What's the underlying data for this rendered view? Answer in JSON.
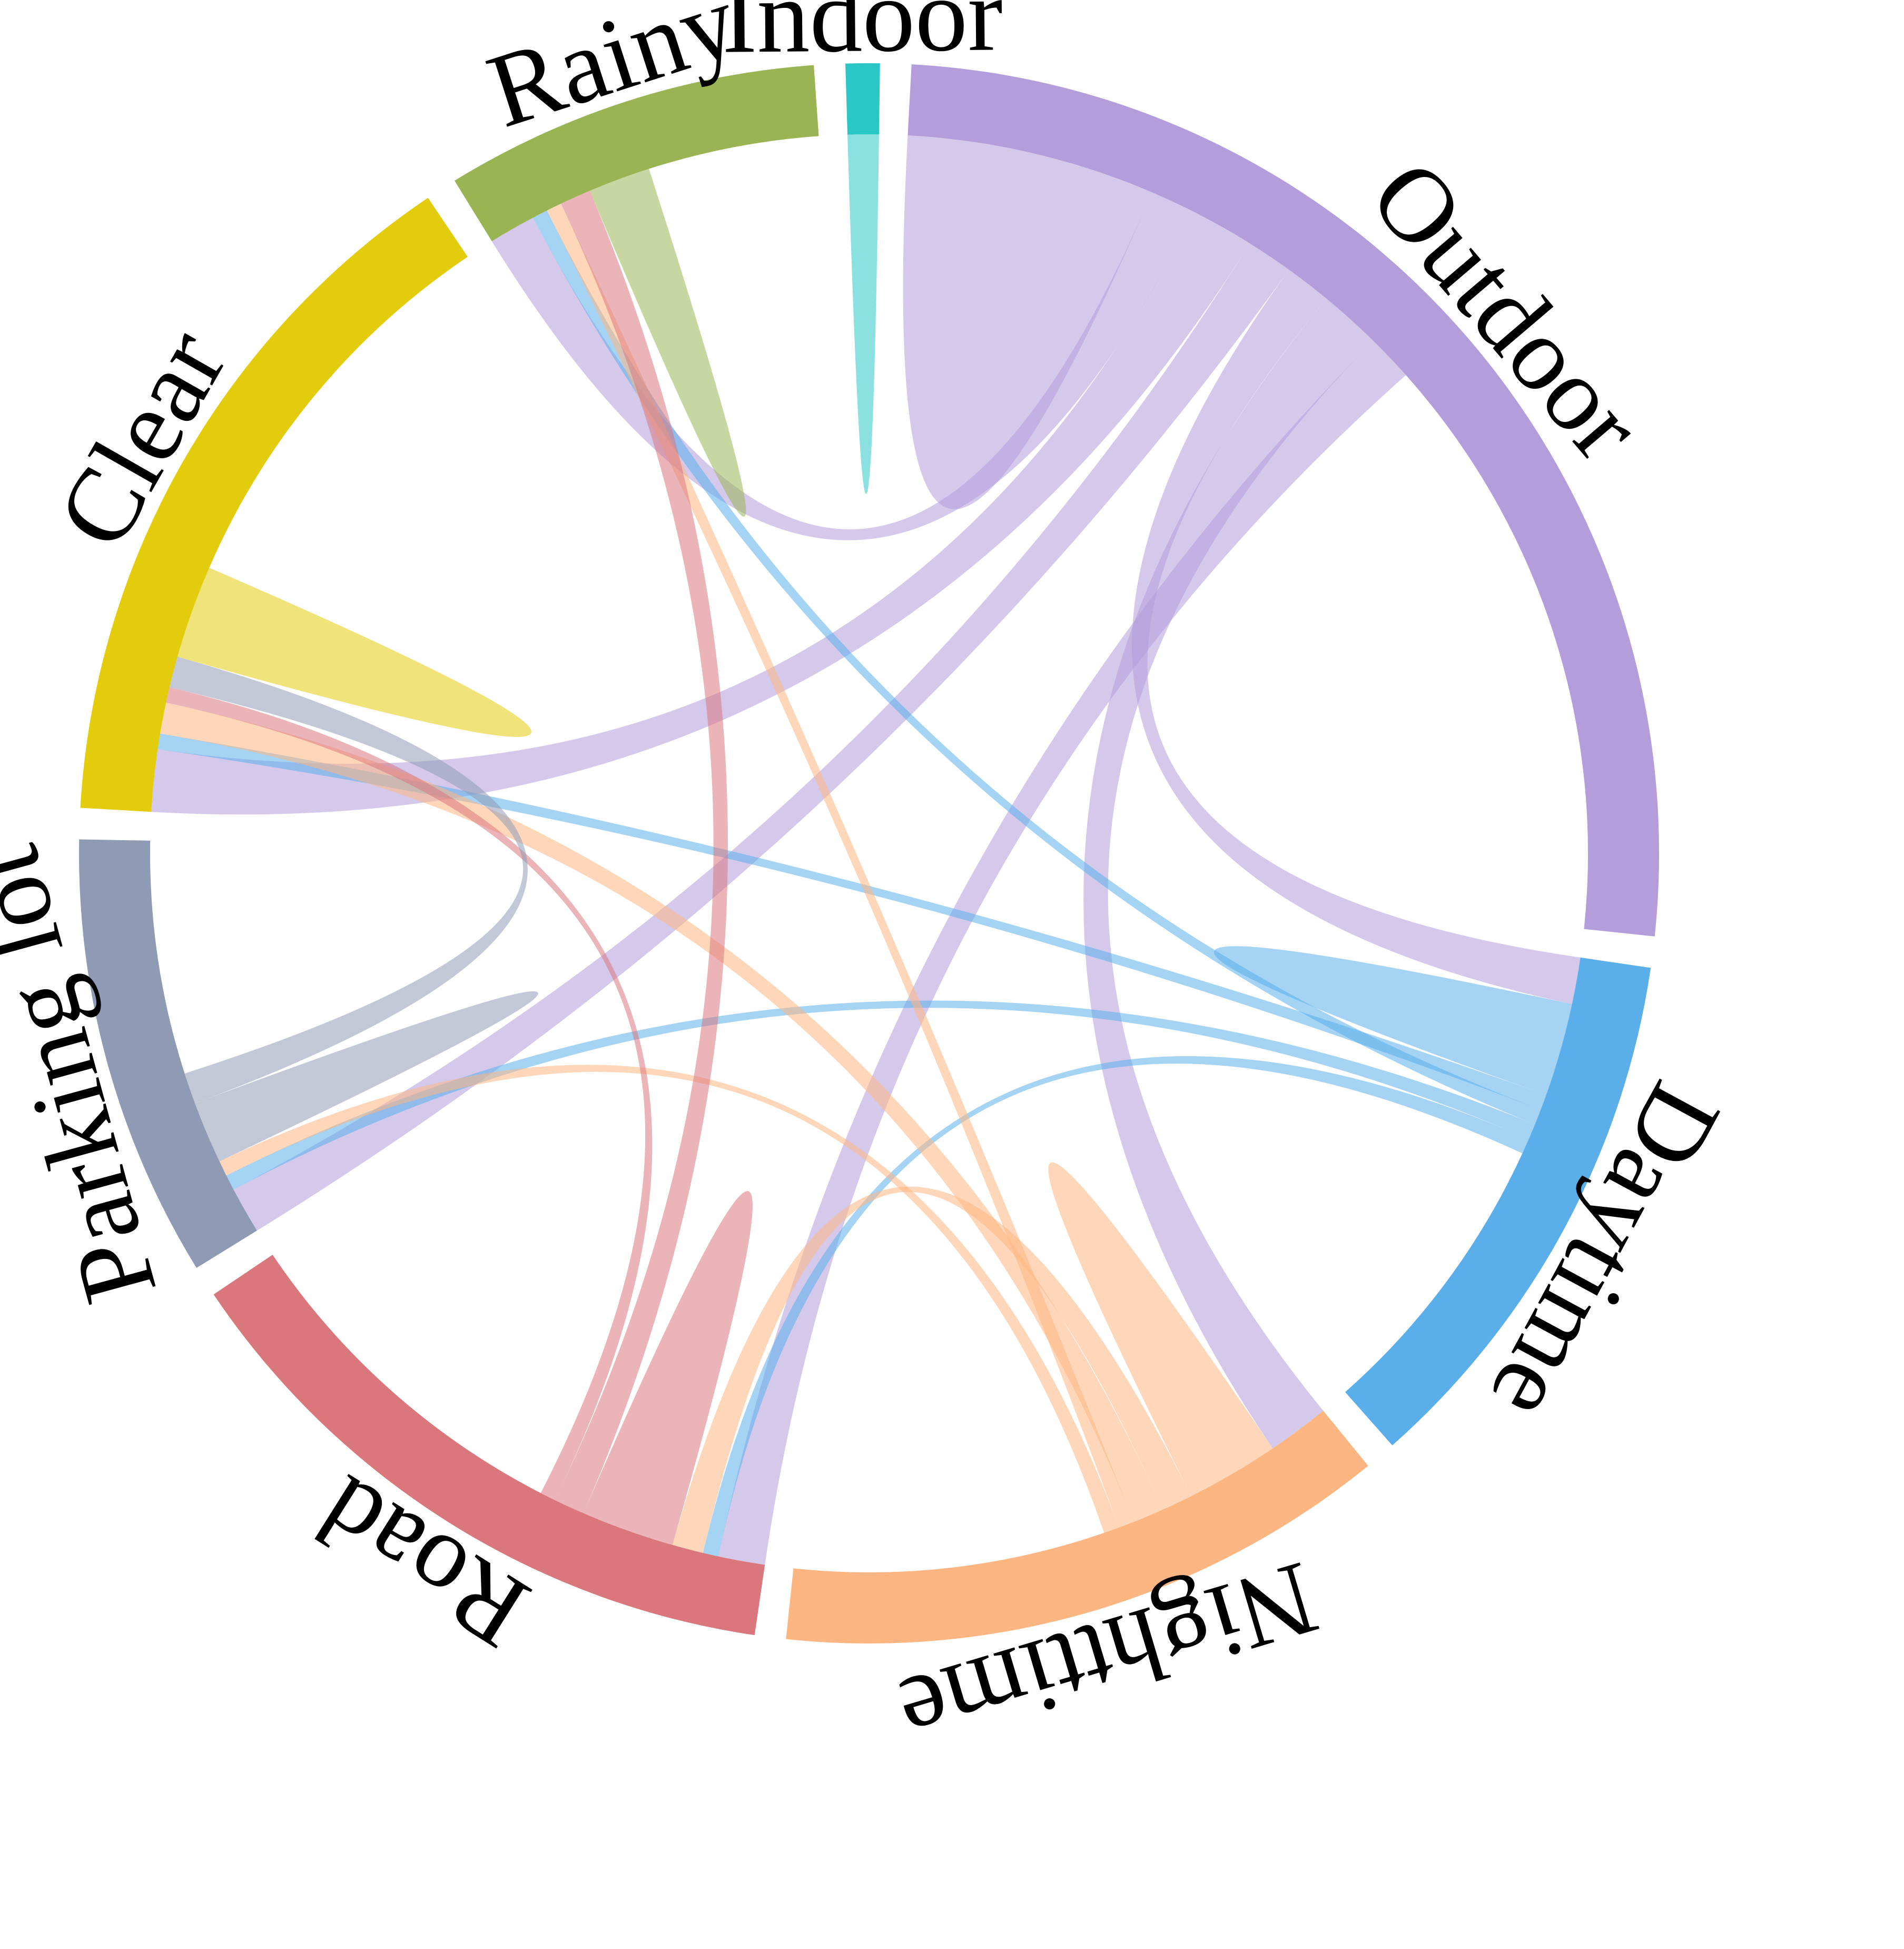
{
  "chart_data": {
    "type": "chord",
    "groups": [
      {
        "name": "Indoor",
        "color": "#2BC6C6",
        "value": 1
      },
      {
        "name": "Outdoor",
        "color": "#B39DDB",
        "value": 37
      },
      {
        "name": "Daytime",
        "color": "#5AAFEB",
        "value": 16
      },
      {
        "name": "Nighttime",
        "color": "#FDB682",
        "value": 18
      },
      {
        "name": "Road",
        "color": "#D9777D",
        "value": 19
      },
      {
        "name": "Parking lot",
        "color": "#8F9AB4",
        "value": 13
      },
      {
        "name": "Clear",
        "color": "#E3CC0C",
        "value": 21
      },
      {
        "name": "Rainy",
        "color": "#9AB454",
        "value": 11
      }
    ],
    "links": [
      {
        "source": "Outdoor",
        "target": "Outdoor",
        "value": 8
      },
      {
        "source": "Outdoor",
        "target": "Rainy",
        "value": 3
      },
      {
        "source": "Outdoor",
        "target": "Clear",
        "value": 4
      },
      {
        "source": "Outdoor",
        "target": "Parking lot",
        "value": 3
      },
      {
        "source": "Outdoor",
        "target": "Daytime",
        "value": 3
      },
      {
        "source": "Outdoor",
        "target": "Nighttime",
        "value": 4
      },
      {
        "source": "Outdoor",
        "target": "Road",
        "value": 3
      },
      {
        "source": "Daytime",
        "target": "Daytime",
        "value": 3
      },
      {
        "source": "Daytime",
        "target": "Clear",
        "value": 1
      },
      {
        "source": "Daytime",
        "target": "Rainy",
        "value": 1
      },
      {
        "source": "Daytime",
        "target": "Parking lot",
        "value": 1
      },
      {
        "source": "Daytime",
        "target": "Road",
        "value": 1
      },
      {
        "source": "Nighttime",
        "target": "Nighttime",
        "value": 3
      },
      {
        "source": "Nighttime",
        "target": "Road",
        "value": 2
      },
      {
        "source": "Nighttime",
        "target": "Clear",
        "value": 2
      },
      {
        "source": "Nighttime",
        "target": "Rainy",
        "value": 1
      },
      {
        "source": "Nighttime",
        "target": "Parking lot",
        "value": 1
      },
      {
        "source": "Road",
        "target": "Road",
        "value": 3
      },
      {
        "source": "Road",
        "target": "Rainy",
        "value": 2
      },
      {
        "source": "Road",
        "target": "Clear",
        "value": 1
      },
      {
        "source": "Parking lot",
        "target": "Parking lot",
        "value": 2
      },
      {
        "source": "Parking lot",
        "target": "Clear",
        "value": 2
      },
      {
        "source": "Clear",
        "target": "Clear",
        "value": 3
      },
      {
        "source": "Rainy",
        "target": "Rainy",
        "value": 2
      },
      {
        "source": "Indoor",
        "target": "Indoor",
        "value": 1
      }
    ]
  }
}
